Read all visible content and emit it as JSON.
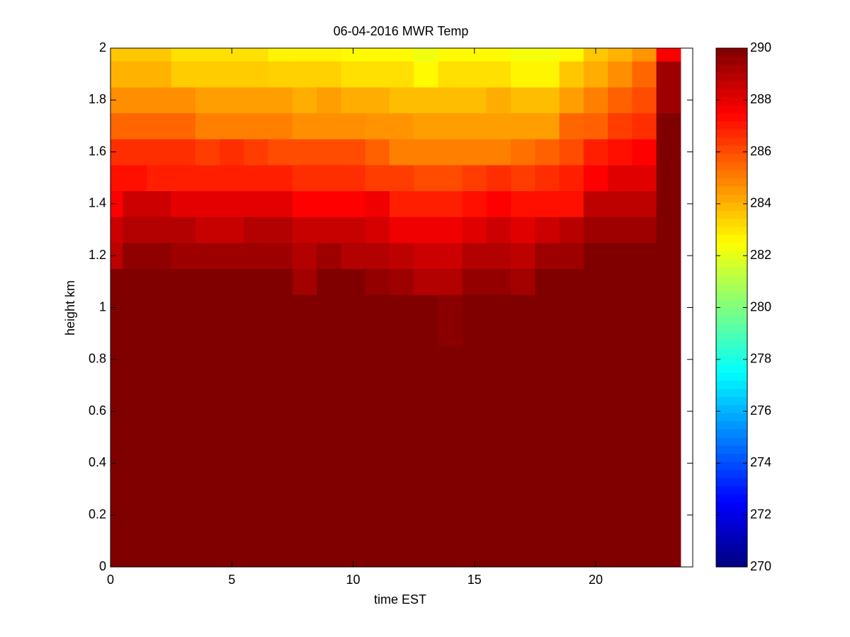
{
  "chart_data": {
    "type": "heatmap",
    "title": "06-04-2016 MWR Temp",
    "x_label": "time EST",
    "y_label": "height km",
    "colormap": "jet",
    "x": [
      0,
      1,
      2,
      3,
      4,
      5,
      6,
      7,
      8,
      9,
      10,
      11,
      12,
      13,
      14,
      15,
      16,
      17,
      18,
      19,
      20,
      21,
      22,
      23
    ],
    "y": [
      0,
      0.1,
      0.2,
      0.3,
      0.4,
      0.5,
      0.6,
      0.7,
      0.8,
      0.9,
      1.0,
      1.1,
      1.2,
      1.3,
      1.4,
      1.5,
      1.6,
      1.7,
      1.8,
      1.9,
      2.0
    ],
    "values": [
      [
        290,
        290,
        290,
        290,
        290,
        290,
        290,
        290,
        290,
        290,
        290,
        290,
        290,
        290,
        290,
        290,
        290,
        290,
        290,
        290,
        290,
        290,
        290,
        290
      ],
      [
        290,
        290,
        290,
        290,
        290,
        290,
        290,
        290,
        290,
        290,
        290,
        290,
        290,
        290,
        290,
        290,
        290,
        290,
        290,
        290,
        290,
        290,
        290,
        290
      ],
      [
        290,
        290,
        290,
        290,
        290,
        290,
        290,
        290,
        290,
        290,
        290,
        290,
        290,
        290,
        290,
        290,
        290,
        290,
        290,
        290,
        290,
        290,
        290,
        290
      ],
      [
        290,
        290,
        290,
        290,
        290,
        290,
        290,
        290,
        290,
        290,
        290,
        290,
        290,
        290,
        290,
        290,
        290,
        290,
        290,
        290,
        290,
        290,
        290,
        290
      ],
      [
        290,
        290,
        290,
        290,
        290,
        290,
        290,
        290,
        290,
        290,
        290,
        290,
        290,
        290,
        290,
        290,
        290,
        290,
        290,
        290,
        290,
        290,
        290,
        290
      ],
      [
        290,
        290,
        290,
        290,
        290,
        290,
        290,
        290,
        290,
        290,
        290,
        290,
        290,
        290,
        290,
        290,
        290,
        290,
        290,
        290,
        290,
        290,
        290,
        290
      ],
      [
        290,
        290,
        290,
        290,
        290,
        290,
        290,
        290,
        290,
        290,
        290,
        290,
        290,
        290,
        290,
        290,
        290,
        290,
        290,
        290,
        290,
        290,
        290,
        290
      ],
      [
        290,
        290,
        290,
        290,
        290,
        290,
        290,
        290,
        290,
        290,
        290,
        290,
        290,
        290,
        290,
        290,
        290,
        290,
        290,
        290,
        290,
        290,
        290,
        290
      ],
      [
        290,
        290,
        290,
        290,
        290,
        290,
        290,
        290,
        290,
        290,
        290,
        290,
        290,
        290,
        290,
        290,
        290,
        290,
        290,
        290,
        290,
        290,
        290,
        290
      ],
      [
        290,
        290,
        290,
        290,
        290,
        290,
        290,
        290,
        290,
        290,
        290,
        290,
        290,
        290,
        289.8,
        290,
        290,
        290,
        290,
        290,
        290,
        290,
        290,
        290
      ],
      [
        290,
        290,
        290,
        290,
        290,
        290,
        290,
        290,
        290,
        290,
        290,
        290,
        290,
        290,
        289.8,
        290,
        290,
        290,
        290,
        290,
        290,
        290,
        290,
        290
      ],
      [
        290,
        290,
        290,
        290,
        290,
        290,
        290,
        290,
        289.3,
        290,
        290,
        289.6,
        289.4,
        289.0,
        289.0,
        289.6,
        289.6,
        289.3,
        290,
        290,
        290,
        290,
        290,
        290
      ],
      [
        288.8,
        289.7,
        289.7,
        289.4,
        289.4,
        289.4,
        289.4,
        289.4,
        289.0,
        289.4,
        289.0,
        289.0,
        288.8,
        288.5,
        288.5,
        289.0,
        289.0,
        288.8,
        289.4,
        289.4,
        290,
        290,
        290,
        290
      ],
      [
        288.5,
        289.0,
        289.0,
        289.0,
        288.6,
        288.6,
        289.0,
        289.0,
        288.6,
        288.6,
        288.6,
        288.3,
        287.8,
        287.8,
        287.8,
        288.1,
        288.5,
        288.1,
        288.5,
        288.9,
        289.4,
        289.4,
        289.4,
        290
      ],
      [
        287.5,
        288.5,
        288.5,
        288.0,
        288.0,
        288.0,
        288.0,
        288.0,
        287.5,
        287.5,
        287.5,
        287.8,
        286.9,
        286.9,
        286.9,
        287.2,
        287.5,
        287.2,
        287.2,
        287.2,
        288.8,
        288.8,
        288.8,
        290
      ],
      [
        287.2,
        287.2,
        286.9,
        286.9,
        286.9,
        286.9,
        286.9,
        286.9,
        286.6,
        286.6,
        286.6,
        286.3,
        286.3,
        286.0,
        286.0,
        286.3,
        286.6,
        286.3,
        286.6,
        286.9,
        287.5,
        288.1,
        288.1,
        290
      ],
      [
        286.6,
        286.6,
        286.6,
        286.6,
        286.3,
        286.6,
        286.3,
        286.0,
        286.0,
        286.0,
        286.0,
        285.6,
        285.0,
        285.0,
        285.0,
        285.0,
        285.0,
        285.3,
        285.6,
        286.0,
        286.9,
        287.2,
        287.5,
        290
      ],
      [
        285.5,
        285.5,
        285.5,
        285.5,
        285.0,
        285.0,
        285.0,
        285.0,
        284.7,
        284.7,
        284.7,
        284.6,
        284.6,
        284.4,
        284.4,
        284.4,
        284.4,
        284.4,
        284.4,
        285.5,
        285.6,
        286.3,
        286.6,
        290
      ],
      [
        284.7,
        284.7,
        284.7,
        284.7,
        284.4,
        284.4,
        284.4,
        284.4,
        284.1,
        284.4,
        284.1,
        284.1,
        283.8,
        283.8,
        283.8,
        283.8,
        284.1,
        283.8,
        283.8,
        284.4,
        285.0,
        285.6,
        286.0,
        289.4
      ],
      [
        284.0,
        284.0,
        284.0,
        283.5,
        283.5,
        283.5,
        283.5,
        283.4,
        283.4,
        283.4,
        283.1,
        283.1,
        283.1,
        282.6,
        283.1,
        283.1,
        283.1,
        282.7,
        282.7,
        283.6,
        284.1,
        284.7,
        285.5,
        289.4
      ],
      [
        283.6,
        283.6,
        283.6,
        283.1,
        283.1,
        283.1,
        283.1,
        282.7,
        282.7,
        282.7,
        282.6,
        282.6,
        282.6,
        282.2,
        282.6,
        282.6,
        282.6,
        282.3,
        282.3,
        282.6,
        283.6,
        284.0,
        284.6,
        287.6
      ]
    ],
    "xlim": [
      0,
      24
    ],
    "xticks": [
      0,
      5,
      10,
      15,
      20
    ],
    "ylim": [
      0,
      2
    ],
    "yticks": [
      0,
      0.2,
      0.4,
      0.6,
      0.8,
      1,
      1.2,
      1.4,
      1.6,
      1.8,
      2
    ],
    "clim": [
      270,
      290
    ],
    "cticks": [
      270,
      272,
      274,
      276,
      278,
      280,
      282,
      284,
      286,
      288,
      290
    ]
  }
}
